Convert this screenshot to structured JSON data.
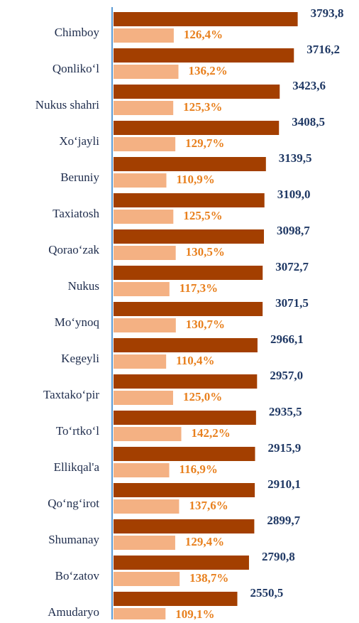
{
  "chart_data": {
    "type": "bar",
    "orientation": "horizontal",
    "categories": [
      "Chimboy",
      "Qonlikoʻl",
      "Nukus shahri",
      "Xoʻjayli",
      "Beruniy",
      "Taxiatosh",
      "Qoraoʻzak",
      "Nukus",
      "Moʻynoq",
      "Kegeyli",
      "Taxtakoʻpir",
      "Toʻrtkoʻl",
      "Ellikqal'a",
      "Qoʻngʻirot",
      "Shumanay",
      "Boʻzatov",
      "Amudaryo"
    ],
    "series": [
      {
        "color": "#a33f00",
        "label_color": "#1f3864",
        "values": [
          3793.8,
          3716.2,
          3423.6,
          3408.5,
          3139.5,
          3109.0,
          3098.7,
          3072.7,
          3071.5,
          2966.1,
          2957.0,
          2935.5,
          2915.9,
          2910.1,
          2899.7,
          2790.8,
          2550.5
        ],
        "value_labels": [
          "3793,8",
          "3716,2",
          "3423,6",
          "3408,5",
          "3139,5",
          "3109,0",
          "3098,7",
          "3072,7",
          "3071,5",
          "2966,1",
          "2957,0",
          "2935,5",
          "2915,9",
          "2910,1",
          "2899,7",
          "2790,8",
          "2550,5"
        ]
      },
      {
        "color": "#f4b183",
        "label_color": "#e8801e",
        "axis": "x2",
        "values": [
          126.4,
          136.2,
          125.3,
          129.7,
          110.9,
          125.5,
          130.5,
          117.3,
          130.7,
          110.4,
          125.0,
          142.2,
          116.9,
          137.6,
          129.4,
          138.7,
          109.1
        ],
        "value_labels": [
          "126,4%",
          "136,2%",
          "125,3%",
          "129,7%",
          "110,9%",
          "125,5%",
          "130,5%",
          "117,3%",
          "130,7%",
          "110,4%",
          "125,0%",
          "142,2%",
          "116,9%",
          "137,6%",
          "129,4%",
          "138,7%",
          "109,1%"
        ]
      }
    ],
    "xlim": [
      0,
      3800
    ],
    "x2lim": [
      0,
      387
    ]
  }
}
